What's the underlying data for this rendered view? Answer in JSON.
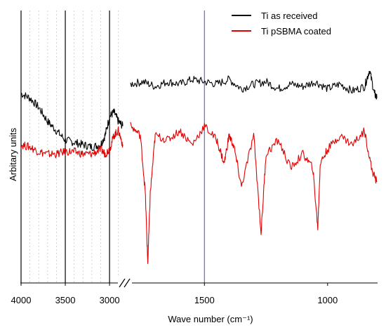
{
  "chart_data": {
    "type": "line",
    "title": "",
    "xlabel": "Wave number (cm⁻¹)",
    "ylabel": "Arbitary units",
    "x_reversed": true,
    "axis_break": {
      "between": [
        2850,
        1800
      ]
    },
    "xlim_left_panel": [
      4000,
      2850
    ],
    "xlim_right_panel": [
      1800,
      800
    ],
    "x_ticks": [
      {
        "value": 4000,
        "label": "4000"
      },
      {
        "value": 3500,
        "label": "3500"
      },
      {
        "value": 3000,
        "label": "3000"
      },
      {
        "value": 1500,
        "label": "1500"
      },
      {
        "value": 1000,
        "label": "1000"
      }
    ],
    "y_ticks": [],
    "grid": "vertical dashed lines in 4000–2850 region",
    "legend": "top-right",
    "reference_lines": [
      {
        "x": 4000,
        "color": "#000000"
      },
      {
        "x": 3500,
        "color": "#000000"
      },
      {
        "x": 3000,
        "color": "#000000"
      },
      {
        "x": 1500,
        "color": "#6666cc"
      }
    ],
    "series": [
      {
        "name": "Ti as received",
        "color": "#000000",
        "x": [
          4000,
          3900,
          3800,
          3700,
          3600,
          3500,
          3400,
          3300,
          3200,
          3100,
          3050,
          3000,
          2950,
          2900,
          2850,
          1800,
          1750,
          1700,
          1650,
          1600,
          1550,
          1500,
          1450,
          1400,
          1350,
          1300,
          1250,
          1200,
          1150,
          1100,
          1050,
          1000,
          950,
          900,
          850,
          830,
          810,
          800
        ],
        "y": [
          0.78,
          0.76,
          0.72,
          0.66,
          0.62,
          0.58,
          0.57,
          0.56,
          0.55,
          0.56,
          0.6,
          0.68,
          0.7,
          0.66,
          0.64,
          0.82,
          0.83,
          0.81,
          0.83,
          0.82,
          0.84,
          0.83,
          0.82,
          0.84,
          0.8,
          0.82,
          0.83,
          0.8,
          0.82,
          0.81,
          0.83,
          0.8,
          0.82,
          0.79,
          0.81,
          0.88,
          0.78,
          0.76
        ]
      },
      {
        "name": "Ti pSBMA coated",
        "color": "#e00000",
        "x": [
          4000,
          3900,
          3800,
          3700,
          3600,
          3500,
          3400,
          3300,
          3200,
          3100,
          3050,
          3000,
          2950,
          2900,
          2850,
          1800,
          1760,
          1740,
          1730,
          1720,
          1700,
          1650,
          1600,
          1550,
          1500,
          1450,
          1420,
          1400,
          1380,
          1350,
          1300,
          1270,
          1250,
          1200,
          1150,
          1100,
          1060,
          1040,
          1030,
          1000,
          950,
          900,
          850,
          820,
          800
        ],
        "y": [
          0.56,
          0.55,
          0.53,
          0.52,
          0.52,
          0.53,
          0.53,
          0.52,
          0.52,
          0.54,
          0.52,
          0.54,
          0.6,
          0.62,
          0.56,
          0.64,
          0.6,
          0.35,
          0.05,
          0.35,
          0.6,
          0.58,
          0.62,
          0.56,
          0.64,
          0.58,
          0.48,
          0.6,
          0.55,
          0.38,
          0.6,
          0.18,
          0.52,
          0.58,
          0.46,
          0.52,
          0.46,
          0.2,
          0.48,
          0.54,
          0.6,
          0.56,
          0.62,
          0.45,
          0.4
        ]
      }
    ]
  }
}
